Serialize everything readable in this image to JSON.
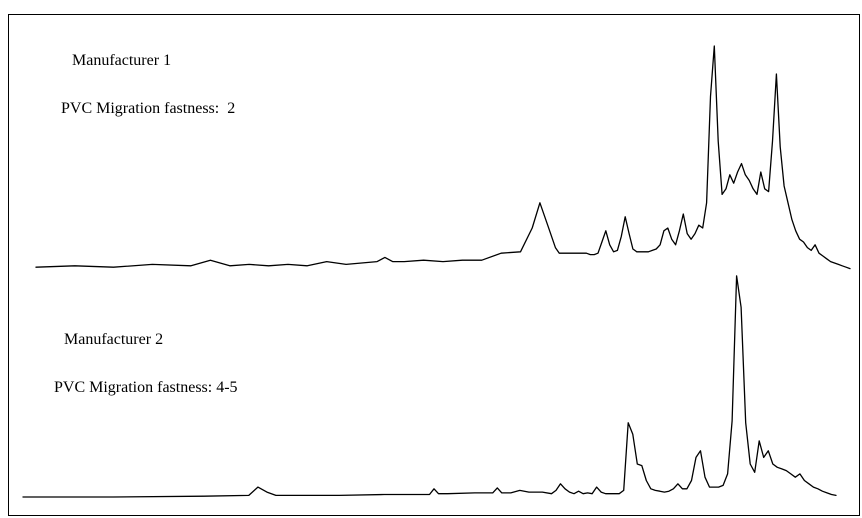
{
  "chart_data": {
    "type": "line",
    "title": "",
    "xlabel": "",
    "ylabel": "",
    "grid": false,
    "legend": "none",
    "series": [
      {
        "name": "Manufacturer 1",
        "annotation": "PVC Migration fastness:  2",
        "x": [
          0,
          10,
          20,
          30,
          40,
          45,
          50,
          55,
          60,
          65,
          70,
          75,
          80,
          88,
          90,
          92,
          95,
          100,
          105,
          110,
          115,
          120,
          125,
          128,
          130,
          132,
          134,
          135,
          136,
          137,
          138,
          139,
          140,
          141,
          142,
          143,
          144,
          145,
          146,
          147,
          148,
          149,
          150,
          151,
          152,
          153,
          154,
          155,
          156,
          157,
          158,
          159,
          160,
          161,
          162,
          163,
          164,
          165,
          166,
          167,
          168,
          169,
          170,
          171,
          172,
          173,
          174,
          175,
          176,
          177,
          178,
          179,
          180,
          181,
          182,
          183,
          184,
          185,
          186,
          187,
          188,
          189,
          190,
          191,
          192,
          193,
          194,
          195,
          196,
          197,
          198,
          199,
          200,
          201,
          202,
          203,
          204,
          205,
          206,
          207,
          208,
          209,
          210
        ],
        "y": [
          1.0,
          1.5,
          1.0,
          2.0,
          1.5,
          3.5,
          1.5,
          2.0,
          1.5,
          2.0,
          1.5,
          3.0,
          2.0,
          3.0,
          4.5,
          3.0,
          3.0,
          3.5,
          3.0,
          3.5,
          3.5,
          6.0,
          6.5,
          15.0,
          24.0,
          16.0,
          8.0,
          6.0,
          6.0,
          6.0,
          6.0,
          6.0,
          6.0,
          6.0,
          6.0,
          5.5,
          5.5,
          6.0,
          10.0,
          14.0,
          9.0,
          6.5,
          7.0,
          12.0,
          19.0,
          13.0,
          7.5,
          6.5,
          6.5,
          6.5,
          6.5,
          7.0,
          7.5,
          9.0,
          14.0,
          15.0,
          11.0,
          9.0,
          14.0,
          20.0,
          13.0,
          11.0,
          13.0,
          16.0,
          15.0,
          24.0,
          62.0,
          80.0,
          46.0,
          27.0,
          29.0,
          34.0,
          31.0,
          35.0,
          38.0,
          34.0,
          32.0,
          29.0,
          27.0,
          35.0,
          29.0,
          28.0,
          46.0,
          70.0,
          44.0,
          30.0,
          24.0,
          18.0,
          14.0,
          11.0,
          10.0,
          8.0,
          7.0,
          9.0,
          6.0,
          5.0,
          4.0,
          3.0,
          2.5,
          2.0,
          1.5,
          1.0,
          0.5
        ]
      },
      {
        "name": "Manufacturer 2",
        "annotation": "PVC Migration fastness: 4-5",
        "x": [
          0,
          20,
          40,
          50,
          52,
          54,
          56,
          60,
          70,
          80,
          90,
          91,
          92,
          94,
          100,
          104,
          105,
          106,
          108,
          110,
          112,
          115,
          117,
          118,
          119,
          120,
          121,
          122,
          123,
          124,
          125,
          126,
          127,
          128,
          129,
          130,
          131,
          132,
          133,
          134,
          135,
          136,
          137,
          138,
          139,
          140,
          141,
          142,
          143,
          144,
          145,
          146,
          147,
          148,
          149,
          150,
          151,
          152,
          153,
          154,
          155,
          156,
          157,
          158,
          159,
          160,
          161,
          162,
          163,
          164,
          165,
          166,
          167,
          168,
          169,
          170,
          171,
          172,
          173,
          174,
          175,
          176,
          177,
          178,
          179,
          180
        ],
        "y": [
          0.0,
          0.0,
          0.5,
          1.0,
          6.0,
          3.0,
          1.0,
          1.0,
          1.0,
          1.5,
          1.5,
          5.0,
          2.0,
          2.0,
          2.5,
          2.5,
          5.5,
          2.5,
          2.5,
          4.0,
          3.0,
          3.0,
          2.0,
          4.0,
          8.0,
          5.0,
          3.0,
          2.0,
          3.5,
          2.0,
          2.5,
          2.0,
          6.0,
          3.0,
          2.0,
          2.0,
          2.0,
          2.0,
          4.0,
          45.0,
          38.0,
          20.0,
          19.0,
          10.0,
          5.0,
          4.0,
          3.5,
          3.0,
          3.5,
          5.0,
          8.0,
          5.0,
          5.0,
          10.0,
          24.0,
          28.0,
          12.0,
          6.0,
          6.0,
          6.0,
          7.0,
          14.0,
          46.0,
          134.0,
          115.0,
          45.0,
          20.0,
          15.0,
          34.0,
          24.0,
          28.0,
          20.0,
          18.0,
          17.0,
          16.0,
          14.0,
          12.0,
          14.0,
          10.0,
          8.0,
          6.0,
          5.0,
          3.5,
          2.5,
          1.5,
          1.0
        ]
      }
    ]
  }
}
